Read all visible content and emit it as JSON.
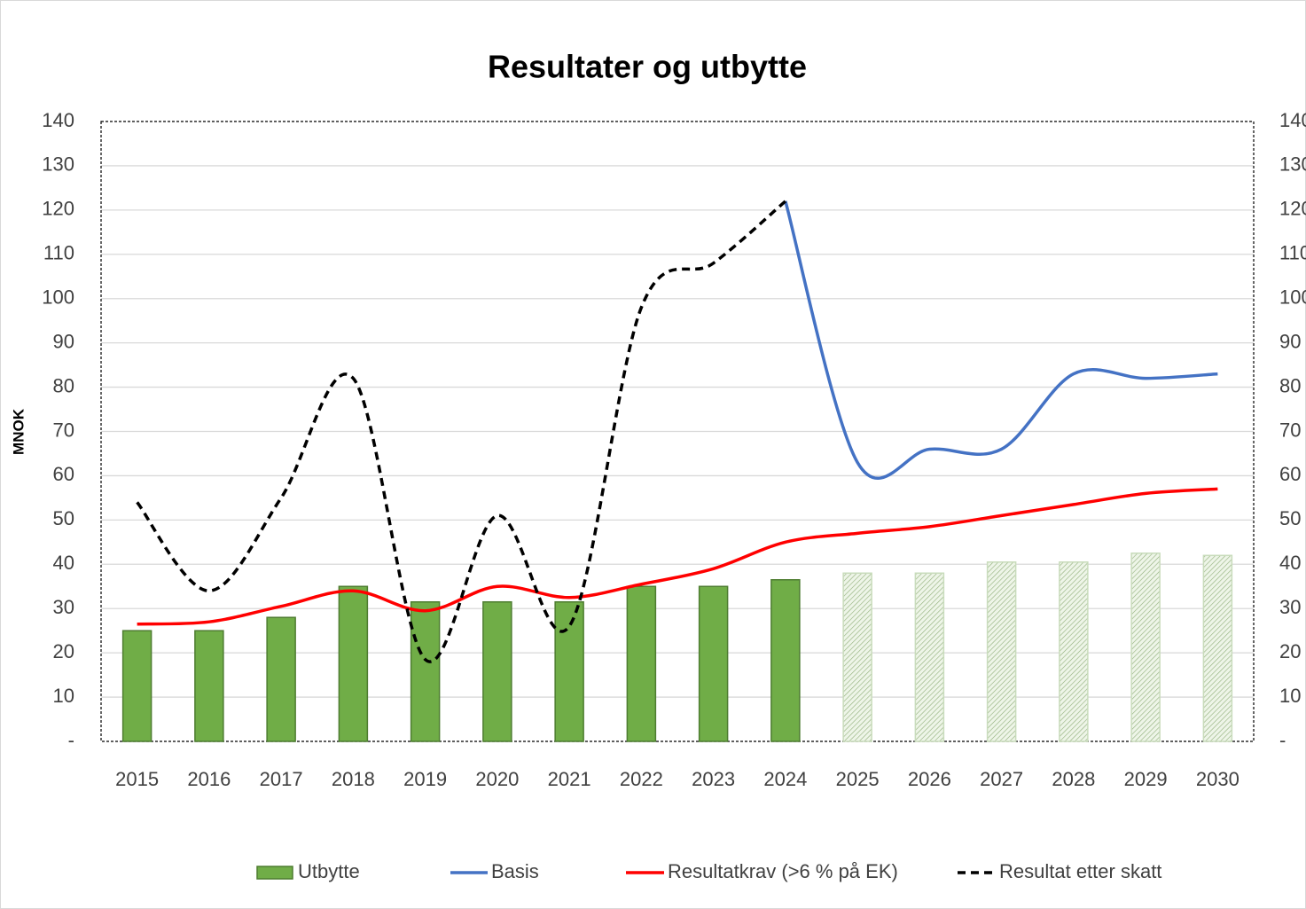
{
  "chart_data": {
    "type": "combo",
    "title": "Resultater og utbytte",
    "y_label": "MNOK",
    "categories": [
      "2015",
      "2016",
      "2017",
      "2018",
      "2019",
      "2020",
      "2021",
      "2022",
      "2023",
      "2024",
      "2025",
      "2026",
      "2027",
      "2028",
      "2029",
      "2030"
    ],
    "series": [
      {
        "name": "Utbytte",
        "type": "bar",
        "color": "#70ad47",
        "colors": [
          "#70ad47",
          "#70ad47",
          "#70ad47",
          "#70ad47",
          "#70ad47",
          "#70ad47",
          "#70ad47",
          "#70ad47",
          "#70ad47",
          "#70ad47",
          "#c9dcbc",
          "#c9dcbc",
          "#c9dcbc",
          "#c9dcbc",
          "#c9dcbc",
          "#c9dcbc"
        ],
        "values": [
          25,
          25,
          28,
          35,
          31.5,
          31.5,
          31.5,
          35,
          35,
          36.5,
          38,
          38,
          40.5,
          40.5,
          42.5,
          42
        ]
      },
      {
        "name": "Basis",
        "type": "line",
        "color": "#4472c4",
        "values": [
          null,
          null,
          null,
          null,
          null,
          null,
          null,
          null,
          null,
          122,
          63,
          66,
          66,
          83,
          82,
          83
        ]
      },
      {
        "name": "Resultatkrav (>6 % på EK)",
        "type": "line",
        "color": "#ff0000",
        "values": [
          26.5,
          27,
          30.5,
          34,
          29.5,
          35,
          32.5,
          35.5,
          39,
          45,
          47,
          48.5,
          51,
          53.5,
          56,
          57
        ]
      },
      {
        "name": "Resultat etter skatt",
        "type": "line",
        "color": "#000000",
        "dashed": true,
        "values": [
          54,
          34,
          55,
          82,
          18.5,
          51,
          26,
          98,
          108,
          122,
          null,
          null,
          null,
          null,
          null,
          null
        ]
      }
    ],
    "ylim": [
      0,
      140
    ],
    "yticks": [
      {
        "value": 0,
        "label": "-"
      },
      10,
      20,
      30,
      40,
      50,
      60,
      70,
      80,
      90,
      100,
      110,
      120,
      130,
      140
    ],
    "y2lim": [
      0,
      140
    ],
    "y2ticks": [
      {
        "value": 0,
        "label": "-"
      },
      10,
      20,
      30,
      40,
      50,
      60,
      70,
      80,
      90,
      100,
      110,
      120,
      130,
      140
    ],
    "grid": true,
    "legend": "bottom"
  }
}
